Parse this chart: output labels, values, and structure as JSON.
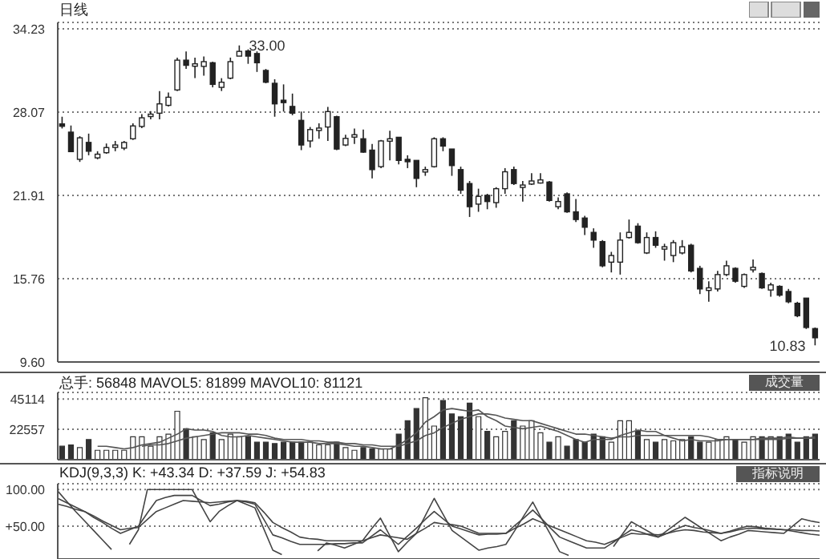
{
  "chart_data": [
    {
      "type": "candlestick",
      "title": "日线",
      "categories": [
        null,
        null,
        null,
        null,
        null,
        null,
        null,
        null,
        null,
        null,
        null,
        null,
        null,
        null,
        null,
        null,
        null,
        null,
        null,
        null,
        null,
        null,
        null,
        null,
        null,
        null,
        null,
        null,
        null,
        null,
        null,
        null,
        null,
        null,
        null,
        null,
        null,
        null,
        null,
        null,
        null,
        null,
        null,
        null,
        null,
        null,
        null,
        null,
        null,
        null,
        null,
        null,
        null,
        null,
        null,
        null,
        null,
        null,
        null,
        null,
        null,
        null,
        null,
        null,
        null,
        null,
        null,
        null,
        null,
        null,
        null,
        null,
        null,
        null,
        null,
        null,
        null,
        null,
        null,
        null,
        null,
        null,
        null,
        null,
        null,
        null
      ],
      "ohlc": [
        [
          27.2,
          27.73,
          26.86,
          27.12
        ],
        [
          26.59,
          27.08,
          25.15,
          25.15
        ],
        [
          24.58,
          26.29,
          24.39,
          26.17
        ],
        [
          25.83,
          26.48,
          24.88,
          25.18
        ],
        [
          24.69,
          25.18,
          24.58,
          24.96
        ],
        [
          25.07,
          25.75,
          24.99,
          25.45
        ],
        [
          25.56,
          25.94,
          25.18,
          25.64
        ],
        [
          25.41,
          25.94,
          25.26,
          25.83
        ],
        [
          26.1,
          27.24,
          26.02,
          27.05
        ],
        [
          27.01,
          27.92,
          26.89,
          27.65
        ],
        [
          27.84,
          28.15,
          27.54,
          27.92
        ],
        [
          27.99,
          29.63,
          27.54,
          28.68
        ],
        [
          28.57,
          29.52,
          28.49,
          29.17
        ],
        [
          29.71,
          32.1,
          29.63,
          31.91
        ],
        [
          31.91,
          32.56,
          31.26,
          31.53
        ],
        [
          31.53,
          32.1,
          30.58,
          31.64
        ],
        [
          31.45,
          32.18,
          30.77,
          31.8
        ],
        [
          31.72,
          31.8,
          29.9,
          30.12
        ],
        [
          29.9,
          30.58,
          29.63,
          30.28
        ],
        [
          30.58,
          32.1,
          30.5,
          31.8
        ],
        [
          32.21,
          33.0,
          32.21,
          32.56
        ],
        [
          32.59,
          32.71,
          31.64,
          32.21
        ],
        [
          32.4,
          32.56,
          31.04,
          31.72
        ],
        [
          31.15,
          31.26,
          30.2,
          30.28
        ],
        [
          30.2,
          30.5,
          27.73,
          28.68
        ],
        [
          28.95,
          30.12,
          28.11,
          28.83
        ],
        [
          28.49,
          29.44,
          27.84,
          27.99
        ],
        [
          27.46,
          28.11,
          25.26,
          25.64
        ],
        [
          25.94,
          26.97,
          25.45,
          26.78
        ],
        [
          26.78,
          27.24,
          26.1,
          26.89
        ],
        [
          26.97,
          28.45,
          25.94,
          28.11
        ],
        [
          27.73,
          27.81,
          25.26,
          25.34
        ],
        [
          25.64,
          26.4,
          25.56,
          26.13
        ],
        [
          26.29,
          26.86,
          25.72,
          26.4
        ],
        [
          26.1,
          26.78,
          25.07,
          25.11
        ],
        [
          25.26,
          25.72,
          23.17,
          23.82
        ],
        [
          24.04,
          26.02,
          23.93,
          25.94
        ],
        [
          26.02,
          26.7,
          24.5,
          26.1
        ],
        [
          26.21,
          26.21,
          24.2,
          24.5
        ],
        [
          24.58,
          24.88,
          23.93,
          24.5
        ],
        [
          24.5,
          24.5,
          22.52,
          23.17
        ],
        [
          23.66,
          24.04,
          23.36,
          23.82
        ],
        [
          24.04,
          26.21,
          23.97,
          26.1
        ],
        [
          26.1,
          26.21,
          25.18,
          25.56
        ],
        [
          25.34,
          25.34,
          23.36,
          24.12
        ],
        [
          23.82,
          24.04,
          22.03,
          22.3
        ],
        [
          22.79,
          22.98,
          20.32,
          21.08
        ],
        [
          21.27,
          22.41,
          20.7,
          21.84
        ],
        [
          21.92,
          22.03,
          20.89,
          21.46
        ],
        [
          21.38,
          22.52,
          21.0,
          22.41
        ],
        [
          22.41,
          23.93,
          22.03,
          23.66
        ],
        [
          23.82,
          24.04,
          22.68,
          22.79
        ],
        [
          22.6,
          22.98,
          21.46,
          22.68
        ],
        [
          22.75,
          23.55,
          22.68,
          22.98
        ],
        [
          22.83,
          23.55,
          22.79,
          23.06
        ],
        [
          22.9,
          22.98,
          21.46,
          21.54
        ],
        [
          21.08,
          21.76,
          20.89,
          21.46
        ],
        [
          22.03,
          22.14,
          20.62,
          20.7
        ],
        [
          20.7,
          21.65,
          19.94,
          20.13
        ],
        [
          20.24,
          20.4,
          18.99,
          19.56
        ],
        [
          19.18,
          19.48,
          18.04,
          18.61
        ],
        [
          18.5,
          18.61,
          16.6,
          16.71
        ],
        [
          16.98,
          17.74,
          16.22,
          17.47
        ],
        [
          16.98,
          19.18,
          16.06,
          18.61
        ],
        [
          18.8,
          20.13,
          18.72,
          19.18
        ],
        [
          19.64,
          19.86,
          18.34,
          18.42
        ],
        [
          17.66,
          19.18,
          17.58,
          18.8
        ],
        [
          18.8,
          19.26,
          18.04,
          18.23
        ],
        [
          18.04,
          18.34,
          17.09,
          18.12
        ],
        [
          17.47,
          18.61,
          16.98,
          18.42
        ],
        [
          17.66,
          18.61,
          17.55,
          18.12
        ],
        [
          18.23,
          18.34,
          16.22,
          16.33
        ],
        [
          16.52,
          16.71,
          14.62,
          15.0
        ],
        [
          14.89,
          15.57,
          14.05,
          15.08
        ],
        [
          15.0,
          16.33,
          14.81,
          16.06
        ],
        [
          16.06,
          17.09,
          15.95,
          16.71
        ],
        [
          16.52,
          16.6,
          15.46,
          15.57
        ],
        [
          15.19,
          16.14,
          15.08,
          16.06
        ],
        [
          16.41,
          17.17,
          16.22,
          16.6
        ],
        [
          16.14,
          16.22,
          15.0,
          15.08
        ],
        [
          14.92,
          15.46,
          14.43,
          15.3
        ],
        [
          15.19,
          15.27,
          14.43,
          14.54
        ],
        [
          14.81,
          15.0,
          13.94,
          14.05
        ],
        [
          13.94,
          14.05,
          12.91,
          13.02
        ],
        [
          14.32,
          14.32,
          12.04,
          12.15
        ],
        [
          12.07,
          12.15,
          10.83,
          11.39
        ]
      ],
      "ylim": [
        9.6,
        34.7
      ],
      "yticks": [
        {
          "value": 9.6,
          "label": "9.60"
        },
        15.76,
        21.91,
        28.07,
        34.23
      ],
      "grid": "y",
      "tick_labels": "y",
      "annotations": [
        "33.00",
        "10.83"
      ]
    },
    {
      "type": "bar",
      "title": "总手: 56848 MAVOL5: 81899 MAVOL10: 81121",
      "categories": [
        null,
        null,
        null,
        null,
        null,
        null,
        null,
        null,
        null,
        null,
        null,
        null,
        null,
        null,
        null,
        null,
        null,
        null,
        null,
        null,
        null,
        null,
        null,
        null,
        null,
        null,
        null,
        null,
        null,
        null,
        null,
        null,
        null,
        null,
        null,
        null,
        null,
        null,
        null,
        null,
        null,
        null,
        null,
        null,
        null,
        null,
        null,
        null,
        null,
        null,
        null,
        null,
        null,
        null,
        null,
        null,
        null,
        null,
        null,
        null,
        null,
        null,
        null,
        null,
        null,
        null,
        null,
        null,
        null,
        null,
        null,
        null,
        null,
        null,
        null,
        null,
        null,
        null,
        null,
        null,
        null,
        null,
        null,
        null,
        null,
        null
      ],
      "series": [
        {
          "colors": [
            "#333333",
            "#333333",
            "#ffffff",
            "#333333",
            "#ffffff",
            "#ffffff",
            "#ffffff",
            "#ffffff",
            "#ffffff",
            "#ffffff",
            "#ffffff",
            "#ffffff",
            "#ffffff",
            "#ffffff",
            "#333333",
            "#ffffff",
            "#ffffff",
            "#333333",
            "#ffffff",
            "#ffffff",
            "#ffffff",
            "#333333",
            "#333333",
            "#333333",
            "#333333",
            "#333333",
            "#333333",
            "#333333",
            "#ffffff",
            "#ffffff",
            "#ffffff",
            "#333333",
            "#ffffff",
            "#ffffff",
            "#333333",
            "#333333",
            "#ffffff",
            "#ffffff",
            "#333333",
            "#333333",
            "#333333",
            "#ffffff",
            "#ffffff",
            "#333333",
            "#333333",
            "#333333",
            "#333333",
            "#ffffff",
            "#333333",
            "#ffffff",
            "#ffffff",
            "#333333",
            "#ffffff",
            "#ffffff",
            "#ffffff",
            "#333333",
            "#ffffff",
            "#333333",
            "#333333",
            "#333333",
            "#333333",
            "#333333",
            "#ffffff",
            "#ffffff",
            "#ffffff",
            "#333333",
            "#ffffff",
            "#333333",
            "#ffffff",
            "#ffffff",
            "#ffffff",
            "#333333",
            "#333333",
            "#ffffff",
            "#ffffff",
            "#ffffff",
            "#333333",
            "#ffffff",
            "#ffffff",
            "#333333",
            "#ffffff",
            "#333333",
            "#333333",
            "#333333",
            "#333333",
            "#333333"
          ],
          "values": [
            10000,
            11000,
            9000,
            15000,
            7000,
            7000,
            7000,
            7000,
            17000,
            17000,
            10000,
            17000,
            19000,
            36000,
            23000,
            17000,
            15000,
            20000,
            15000,
            19000,
            17000,
            17000,
            13000,
            13000,
            12000,
            13000,
            13000,
            13000,
            13000,
            11000,
            11000,
            13000,
            9000,
            7000,
            9000,
            8000,
            8000,
            8000,
            19000,
            29000,
            38000,
            46000,
            25000,
            44000,
            34000,
            32000,
            42000,
            32000,
            21000,
            17000,
            21000,
            29000,
            25000,
            29000,
            20000,
            13000,
            17000,
            10000,
            15000,
            13000,
            19000,
            17000,
            13000,
            29000,
            29000,
            21000,
            15000,
            13000,
            15000,
            14000,
            15000,
            17000,
            13000,
            13000,
            15000,
            17000,
            15000,
            13000,
            17000,
            17000,
            17000,
            17000,
            19000,
            13000,
            17000,
            19000
          ]
        },
        {
          "type": "line",
          "color": "#555555",
          "values": [
            null,
            null,
            null,
            null,
            10000,
            10000,
            9000,
            8000,
            9000,
            11000,
            12000,
            13000,
            16000,
            19000,
            23000,
            22000,
            22000,
            21000,
            18000,
            17000,
            17000,
            18000,
            17000,
            16000,
            15000,
            14000,
            13000,
            13000,
            13000,
            12000,
            12000,
            12000,
            11000,
            10000,
            10000,
            9000,
            8000,
            8000,
            11000,
            15000,
            20000,
            28000,
            32000,
            37000,
            38000,
            37000,
            36000,
            37000,
            32000,
            29000,
            25000,
            24000,
            23000,
            24000,
            25000,
            23000,
            21000,
            18000,
            15000,
            13000,
            15000,
            15000,
            15000,
            18000,
            20000,
            22000,
            21000,
            21000,
            18000,
            16000,
            14000,
            15000,
            14000,
            14000,
            14000,
            15000,
            15000,
            15000,
            15000,
            16000,
            16000,
            16000,
            17000,
            16000,
            16000,
            17000
          ]
        },
        {
          "type": "line",
          "color": "#555555",
          "values": [
            null,
            null,
            null,
            null,
            null,
            null,
            null,
            null,
            null,
            10000,
            11000,
            11000,
            12000,
            14000,
            16000,
            17000,
            18000,
            19000,
            20000,
            20000,
            20000,
            19000,
            19000,
            18000,
            16000,
            15000,
            15000,
            15000,
            14000,
            14000,
            13000,
            13000,
            12000,
            12000,
            11000,
            11000,
            10000,
            10000,
            10000,
            12000,
            14000,
            18000,
            20000,
            24000,
            27000,
            30000,
            32000,
            34000,
            34000,
            33000,
            31000,
            30000,
            29000,
            29000,
            27000,
            25000,
            23000,
            21000,
            19000,
            19000,
            18000,
            17000,
            16000,
            17000,
            17000,
            18000,
            18000,
            18000,
            18000,
            18000,
            18000,
            18000,
            18000,
            17000,
            15000,
            15000,
            15000,
            15000,
            15000,
            15000,
            15000,
            15000,
            16000,
            16000,
            16000,
            16000
          ]
        }
      ],
      "ylim": [
        0,
        50000
      ],
      "yticks": [
        22557,
        45114
      ],
      "grid": "y",
      "tick_labels": "y",
      "annotations": [
        "成交量"
      ]
    },
    {
      "type": "line",
      "title": "KDJ(9,3,3) K: +43.34 D: +37.59 J: +54.83",
      "categories": [
        null,
        null,
        null,
        null,
        null,
        null,
        null,
        null,
        null,
        null,
        null,
        null,
        null,
        null,
        null,
        null,
        null,
        null,
        null,
        null,
        null,
        null,
        null,
        null,
        null,
        null,
        null,
        null,
        null,
        null,
        null,
        null,
        null,
        null,
        null,
        null,
        null,
        null,
        null,
        null,
        null,
        null,
        null,
        null,
        null,
        null,
        null,
        null,
        null,
        null,
        null,
        null,
        null,
        null,
        null,
        null,
        null,
        null,
        null,
        null,
        null,
        null,
        null,
        null,
        null,
        null,
        null,
        null,
        null,
        null,
        null,
        null,
        null,
        null,
        null,
        null,
        null,
        null,
        null,
        null,
        null,
        null,
        null,
        null,
        null,
        null
      ],
      "series": [
        {
          "color": "#444444",
          "values": [
            88,
            82,
            76,
            70,
            62,
            55,
            47,
            40,
            45,
            50,
            68,
            85,
            89,
            92,
            92,
            92,
            85,
            78,
            80,
            83,
            85,
            83,
            80,
            59,
            38,
            34,
            29,
            25,
            25,
            25,
            25,
            26,
            26,
            27,
            27,
            36,
            45,
            35,
            25,
            36,
            47,
            59,
            70,
            60,
            50,
            46,
            42,
            38,
            39,
            39,
            40,
            51,
            61,
            72,
            60,
            47,
            35,
            30,
            25,
            20,
            20,
            20,
            28,
            37,
            45,
            42,
            38,
            35,
            40,
            46,
            51,
            48,
            46,
            43,
            40,
            43,
            47,
            50,
            49,
            47,
            46,
            45,
            45,
            44,
            44,
            43.34
          ]
        },
        {
          "color": "#444444",
          "values": [
            80,
            77,
            73,
            70,
            64,
            57,
            51,
            45,
            47,
            48,
            59,
            70,
            75,
            80,
            85,
            84,
            83,
            82,
            83,
            84,
            85,
            84,
            82,
            69,
            55,
            48,
            42,
            35,
            33,
            32,
            30,
            30,
            30,
            30,
            30,
            34,
            38,
            36,
            34,
            32,
            40,
            47,
            55,
            53,
            52,
            50,
            45,
            40,
            40,
            40,
            40,
            47,
            53,
            60,
            55,
            50,
            45,
            40,
            35,
            30,
            28,
            25,
            30,
            35,
            40,
            39,
            39,
            38,
            40,
            43,
            45,
            44,
            42,
            41,
            40,
            42,
            45,
            47,
            47,
            46,
            46,
            45,
            43,
            41,
            39,
            37.59
          ]
        },
        {
          "color": "#444444",
          "values": [
            98,
            84,
            70,
            57,
            44,
            31,
            18,
            null,
            25,
            45,
            100,
            100,
            100,
            100,
            100,
            100,
            78,
            56,
            70,
            78,
            85,
            80,
            75,
            46,
            17,
            11,
            null,
            null,
            null,
            16,
            27,
            24,
            20,
            25,
            30,
            46,
            61,
            38,
            15,
            28,
            40,
            64,
            88,
            66,
            44,
            35,
            26,
            17,
            20,
            22,
            25,
            44,
            64,
            83,
            60,
            38,
            15,
            10,
            null,
            null,
            null,
            null,
            22,
            39,
            56,
            49,
            42,
            35,
            44,
            53,
            62,
            54,
            46,
            38,
            30,
            35,
            39,
            44,
            43,
            42,
            41,
            40,
            50,
            60,
            57,
            54.83
          ]
        }
      ],
      "ylim": [
        5,
        108
      ],
      "yticks": [
        {
          "value": 100,
          "label": "100.00"
        },
        {
          "value": 50,
          "label": "+50.00"
        }
      ],
      "grid": "y",
      "tick_labels": "y",
      "annotations": [
        "指标说明"
      ]
    }
  ]
}
